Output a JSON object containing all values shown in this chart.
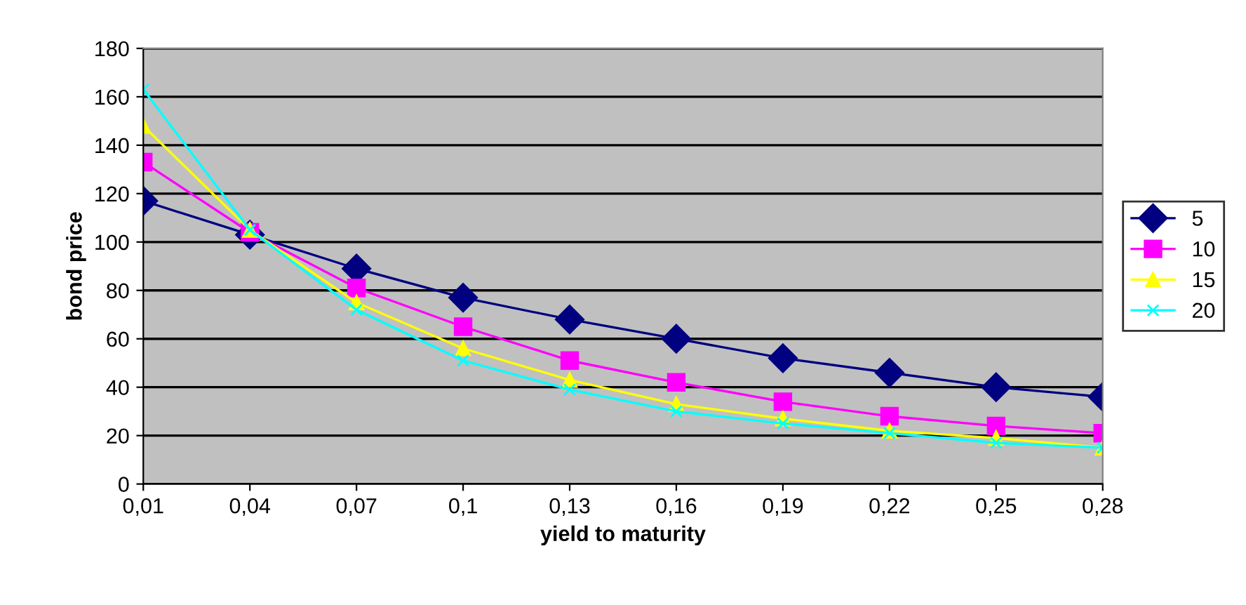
{
  "chart_data": {
    "type": "line",
    "xlabel": "yield to maturity",
    "ylabel": "bond price",
    "categories": [
      "0,01",
      "0,04",
      "0,07",
      "0,1",
      "0,13",
      "0,16",
      "0,19",
      "0,22",
      "0,25",
      "0,28"
    ],
    "ylim": [
      0,
      180
    ],
    "yticks": [
      0,
      20,
      40,
      60,
      80,
      100,
      120,
      140,
      160,
      180
    ],
    "grid": "y",
    "legend": "right",
    "series": [
      {
        "name": "5",
        "color": "#000080",
        "marker": "diamond",
        "values": [
          117,
          103,
          89,
          77,
          68,
          60,
          52,
          46,
          40,
          36
        ]
      },
      {
        "name": "10",
        "color": "#ff00ff",
        "marker": "square",
        "values": [
          133,
          104,
          81,
          65,
          51,
          42,
          34,
          28,
          24,
          21
        ]
      },
      {
        "name": "15",
        "color": "#ffff00",
        "marker": "triangle",
        "values": [
          148,
          105,
          75,
          56,
          43,
          33,
          27,
          22,
          19,
          15
        ]
      },
      {
        "name": "20",
        "color": "#00ffff",
        "marker": "cross",
        "values": [
          163,
          105,
          72,
          51,
          39,
          30,
          25,
          21,
          17,
          15
        ]
      }
    ]
  }
}
